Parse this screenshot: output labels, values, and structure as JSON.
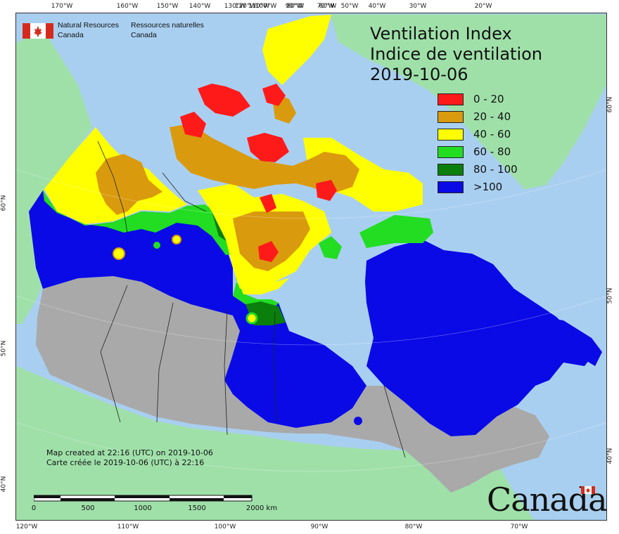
{
  "title": {
    "line_en": "Ventilation Index",
    "line_fr": "Indice de ventilation",
    "date": "2019-10-06"
  },
  "legend": [
    {
      "label": "0 - 20",
      "color": "#ff1a1a"
    },
    {
      "label": "20 - 40",
      "color": "#d99a0e"
    },
    {
      "label": "40 - 60",
      "color": "#ffff00"
    },
    {
      "label": "60 - 80",
      "color": "#22dd22"
    },
    {
      "label": "80 - 100",
      "color": "#0b7f0b"
    },
    {
      "label": ">100",
      "color": "#0a0ae6"
    }
  ],
  "colors": {
    "ocean": "#a9cff0",
    "land_foreign": "#9fe0a9",
    "no_data": "#a9a9a9"
  },
  "branding": {
    "nrcan_en_line1": "Natural Resources",
    "nrcan_en_line2": "Canada",
    "nrcan_fr_line1": "Ressources naturelles",
    "nrcan_fr_line2": "Canada",
    "wordmark": "Canada"
  },
  "credits": {
    "en": "Map created at 22:16 (UTC) on 2019-10-06",
    "fr": "Carte créée le 2019-10-06 (UTC) à 22:16"
  },
  "scale_bar": {
    "labels": [
      "0",
      "500",
      "1000",
      "1500",
      "2000 km"
    ]
  },
  "graticule": {
    "top_lon": [
      "170°W",
      "160°W",
      "150°W",
      "140°W",
      "130°W",
      "120°W",
      "110°W",
      "100°W",
      "90°W",
      "80°W",
      "70°W",
      "60°W",
      "50°W",
      "40°W",
      "30°W",
      "20°W"
    ],
    "bottom_lon": [
      "120°W",
      "110°W",
      "100°W",
      "90°W",
      "80°W",
      "70°W"
    ],
    "left_lat": [
      "60°N",
      "50°N",
      "40°N"
    ],
    "right_lat": [
      "60°N",
      "50°N",
      "40°N"
    ]
  }
}
